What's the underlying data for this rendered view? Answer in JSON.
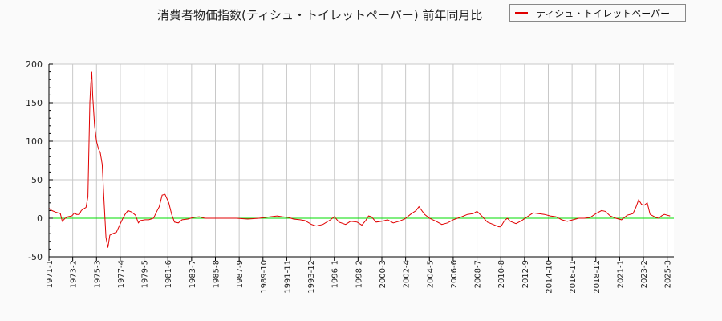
{
  "title": "消費者物価指数(ティシュ・トイレットペーパー) 前年同月比",
  "legend": {
    "label": "ティシュ・トイレットペーパー",
    "color": "#e00000"
  },
  "colors": {
    "series": "#e00000",
    "zero_line": "#00dd00",
    "grid": "#c8c8c8",
    "background": "#fafafa",
    "plot_bg": "#ffffff"
  },
  "chart_data": {
    "type": "line",
    "title": "消費者物価指数(ティシュ・トイレットペーパー) 前年同月比",
    "xlabel": "",
    "ylabel": "",
    "ylim": [
      -50,
      200
    ],
    "yticks": [
      -50,
      0,
      50,
      100,
      150,
      200
    ],
    "grid": true,
    "legend_position": "top-right",
    "xtick_labels": [
      "1971-1",
      "1973-2",
      "1975-3",
      "1977-4",
      "1979-5",
      "1981-6",
      "1983-7",
      "1985-8",
      "1987-9",
      "1989-10",
      "1991-11",
      "1993-12",
      "1996-1",
      "1998-2",
      "2000-3",
      "2002-4",
      "2004-5",
      "2006-6",
      "2008-7",
      "2010-8",
      "2012-9",
      "2014-10",
      "2016-11",
      "2018-12",
      "2021-1",
      "2023-2",
      "2025-3"
    ],
    "series": [
      {
        "name": "ティシュ・トイレットペーパー",
        "points": [
          [
            "1971-1",
            13
          ],
          [
            "1971-4",
            10
          ],
          [
            "1971-8",
            8
          ],
          [
            "1972-1",
            6
          ],
          [
            "1972-3",
            -4
          ],
          [
            "1972-6",
            0
          ],
          [
            "1972-9",
            2
          ],
          [
            "1973-1",
            3
          ],
          [
            "1973-4",
            7
          ],
          [
            "1973-6",
            5
          ],
          [
            "1973-9",
            5
          ],
          [
            "1973-11",
            10
          ],
          [
            "1974-1",
            12
          ],
          [
            "1974-4",
            14
          ],
          [
            "1974-6",
            28
          ],
          [
            "1974-8",
            150
          ],
          [
            "1974-9",
            175
          ],
          [
            "1974-10",
            190
          ],
          [
            "1974-11",
            160
          ],
          [
            "1975-1",
            120
          ],
          [
            "1975-3",
            100
          ],
          [
            "1975-5",
            90
          ],
          [
            "1975-7",
            85
          ],
          [
            "1975-9",
            70
          ],
          [
            "1975-11",
            20
          ],
          [
            "1976-1",
            -25
          ],
          [
            "1976-3",
            -38
          ],
          [
            "1976-5",
            -22
          ],
          [
            "1976-8",
            -20
          ],
          [
            "1976-12",
            -18
          ],
          [
            "1977-3",
            -10
          ],
          [
            "1977-6",
            -2
          ],
          [
            "1977-9",
            5
          ],
          [
            "1977-12",
            10
          ],
          [
            "1978-4",
            8
          ],
          [
            "1978-8",
            4
          ],
          [
            "1978-11",
            -6
          ],
          [
            "1979-1",
            -3
          ],
          [
            "1979-6",
            -2
          ],
          [
            "1979-10",
            -2
          ],
          [
            "1980-3",
            0
          ],
          [
            "1980-6",
            8
          ],
          [
            "1980-9",
            15
          ],
          [
            "1980-12",
            30
          ],
          [
            "1981-3",
            31
          ],
          [
            "1981-7",
            20
          ],
          [
            "1981-10",
            5
          ],
          [
            "1982-1",
            -5
          ],
          [
            "1982-5",
            -6
          ],
          [
            "1982-9",
            -2
          ],
          [
            "1983-3",
            -1
          ],
          [
            "1983-9",
            1
          ],
          [
            "1984-3",
            2
          ],
          [
            "1984-9",
            0
          ],
          [
            "1985-6",
            0
          ],
          [
            "1986-6",
            0
          ],
          [
            "1987-6",
            0
          ],
          [
            "1988-6",
            -1
          ],
          [
            "1989-6",
            0
          ],
          [
            "1990-6",
            2
          ],
          [
            "1991-1",
            3
          ],
          [
            "1991-6",
            2
          ],
          [
            "1992-1",
            1
          ],
          [
            "1992-6",
            -1
          ],
          [
            "1993-1",
            -2
          ],
          [
            "1993-6",
            -3
          ],
          [
            "1994-1",
            -8
          ],
          [
            "1994-6",
            -10
          ],
          [
            "1995-1",
            -8
          ],
          [
            "1995-9",
            -2
          ],
          [
            "1996-1",
            2
          ],
          [
            "1996-6",
            -5
          ],
          [
            "1997-1",
            -8
          ],
          [
            "1997-6",
            -4
          ],
          [
            "1998-1",
            -5
          ],
          [
            "1998-6",
            -9
          ],
          [
            "1998-10",
            -3
          ],
          [
            "1999-1",
            3
          ],
          [
            "1999-4",
            2
          ],
          [
            "1999-9",
            -5
          ],
          [
            "2000-3",
            -4
          ],
          [
            "2000-9",
            -2
          ],
          [
            "2001-3",
            -6
          ],
          [
            "2001-9",
            -4
          ],
          [
            "2002-3",
            -1
          ],
          [
            "2002-9",
            5
          ],
          [
            "2003-3",
            10
          ],
          [
            "2003-6",
            15
          ],
          [
            "2003-12",
            5
          ],
          [
            "2004-5",
            0
          ],
          [
            "2004-12",
            -4
          ],
          [
            "2005-6",
            -8
          ],
          [
            "2005-12",
            -6
          ],
          [
            "2006-6",
            -2
          ],
          [
            "2007-3",
            2
          ],
          [
            "2007-9",
            5
          ],
          [
            "2008-3",
            6
          ],
          [
            "2008-7",
            9
          ],
          [
            "2008-12",
            3
          ],
          [
            "2009-6",
            -5
          ],
          [
            "2009-12",
            -8
          ],
          [
            "2010-6",
            -11
          ],
          [
            "2010-8",
            -11
          ],
          [
            "2010-12",
            -3
          ],
          [
            "2011-3",
            0
          ],
          [
            "2011-6",
            -4
          ],
          [
            "2011-12",
            -7
          ],
          [
            "2012-6",
            -3
          ],
          [
            "2012-12",
            2
          ],
          [
            "2013-6",
            7
          ],
          [
            "2013-12",
            6
          ],
          [
            "2014-6",
            5
          ],
          [
            "2014-12",
            3
          ],
          [
            "2015-6",
            2
          ],
          [
            "2015-12",
            -2
          ],
          [
            "2016-6",
            -4
          ],
          [
            "2016-12",
            -2
          ],
          [
            "2017-6",
            0
          ],
          [
            "2017-12",
            0
          ],
          [
            "2018-6",
            1
          ],
          [
            "2018-12",
            6
          ],
          [
            "2019-6",
            10
          ],
          [
            "2019-10",
            9
          ],
          [
            "2020-3",
            3
          ],
          [
            "2020-9",
            0
          ],
          [
            "2021-3",
            -2
          ],
          [
            "2021-9",
            4
          ],
          [
            "2022-3",
            6
          ],
          [
            "2022-6",
            14
          ],
          [
            "2022-9",
            24
          ],
          [
            "2022-12",
            18
          ],
          [
            "2023-3",
            17
          ],
          [
            "2023-6",
            20
          ],
          [
            "2023-9",
            5
          ],
          [
            "2023-12",
            3
          ],
          [
            "2024-3",
            1
          ],
          [
            "2024-6",
            0
          ],
          [
            "2024-9",
            3
          ],
          [
            "2024-12",
            5
          ],
          [
            "2025-3",
            4
          ],
          [
            "2025-6",
            3
          ]
        ]
      }
    ]
  }
}
